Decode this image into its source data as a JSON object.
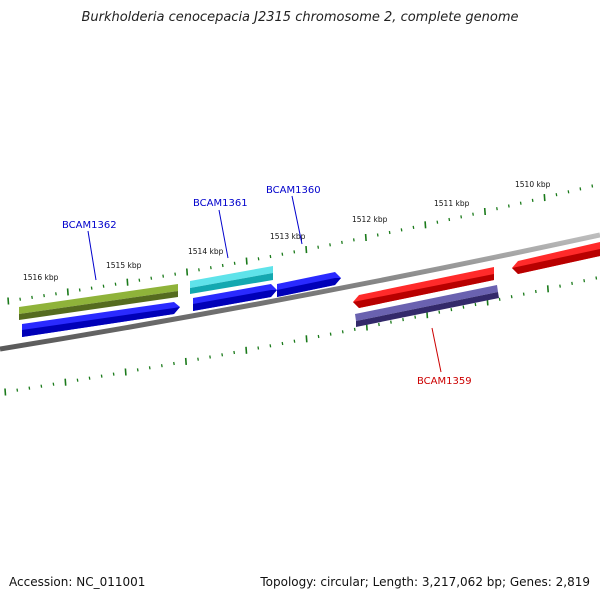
{
  "title": "Burkholderia cenocepacia J2315 chromosome 2, complete genome",
  "footer": {
    "accession": "Accession: NC_011001",
    "topology": "Topology: circular; Length: 3,217,062 bp; Genes: 2,819"
  },
  "colors": {
    "backbone": "#808080",
    "tick": "#1a7a1a",
    "label_blue": "#0000cc",
    "label_red": "#cc0000",
    "olive": "#6b8e23",
    "blue": "#0000ee",
    "cyan": "#1cc8d0",
    "red": "#ee0000",
    "slate": "#483d8b"
  },
  "scale_labels": [
    "1510 kbp",
    "1511 kbp",
    "1512 kbp",
    "1513 kbp",
    "1514 kbp",
    "1515 kbp",
    "1516 kbp"
  ],
  "gene_labels": [
    {
      "text": "BCAM1359",
      "color": "red"
    },
    {
      "text": "BCAM1360",
      "color": "blue"
    },
    {
      "text": "BCAM1361",
      "color": "blue"
    },
    {
      "text": "BCAM1362",
      "color": "blue"
    }
  ],
  "features": [
    {
      "name": "olive-feature",
      "color": "olive",
      "arrow": "none"
    },
    {
      "name": "blue-gene-1362",
      "color": "blue",
      "arrow": "right"
    },
    {
      "name": "cyan-feature",
      "color": "cyan",
      "arrow": "none"
    },
    {
      "name": "blue-gene-1361",
      "color": "blue",
      "arrow": "right"
    },
    {
      "name": "blue-gene-1360",
      "color": "blue",
      "arrow": "right"
    },
    {
      "name": "red-gene-1359",
      "color": "red",
      "arrow": "left"
    },
    {
      "name": "slate-feature",
      "color": "slate",
      "arrow": "none"
    },
    {
      "name": "red-gene-right",
      "color": "red",
      "arrow": "left"
    }
  ]
}
